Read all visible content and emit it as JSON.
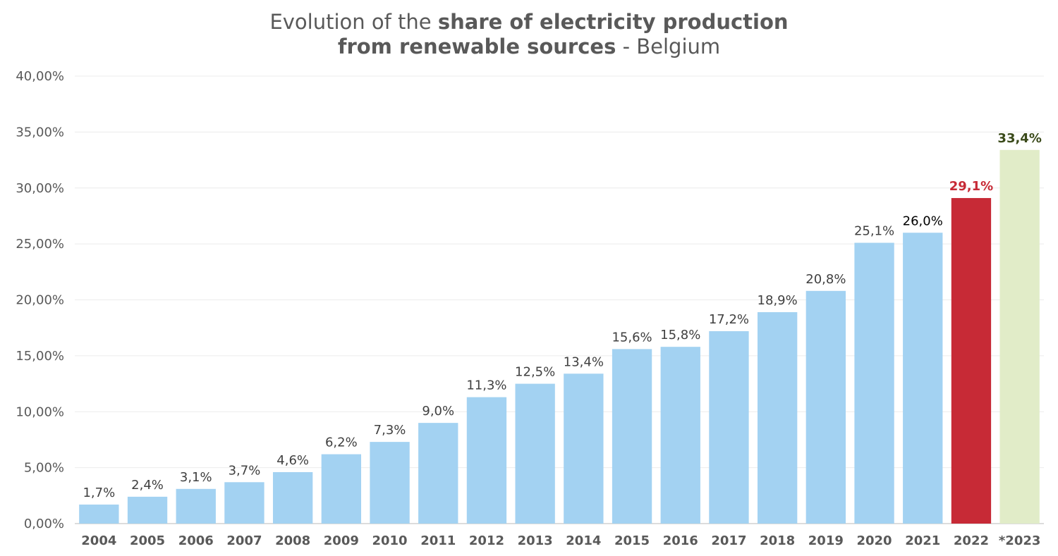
{
  "chart_data": {
    "type": "bar",
    "title": {
      "part1": "Evolution of the ",
      "part2_bold": "share of electricity production",
      "part3_bold": "from renewable sources",
      "part4": " - Belgium"
    },
    "xlabel": "",
    "ylabel": "",
    "ylim": [
      0,
      40
    ],
    "yticks": [
      {
        "value": 0,
        "label": "0,00%"
      },
      {
        "value": 5,
        "label": "5,00%"
      },
      {
        "value": 10,
        "label": "10,00%"
      },
      {
        "value": 15,
        "label": "15,00%"
      },
      {
        "value": 20,
        "label": "20,00%"
      },
      {
        "value": 25,
        "label": "25,00%"
      },
      {
        "value": 30,
        "label": "30,00%"
      },
      {
        "value": 35,
        "label": "35,00%"
      },
      {
        "value": 40,
        "label": "40,00%"
      }
    ],
    "grid": true,
    "categories": [
      "2004",
      "2005",
      "2006",
      "2007",
      "2008",
      "2009",
      "2010",
      "2011",
      "2012",
      "2013",
      "2014",
      "2015",
      "2016",
      "2017",
      "2018",
      "2019",
      "2020",
      "2021",
      "2022",
      "*2023"
    ],
    "values": [
      1.7,
      2.4,
      3.1,
      3.7,
      4.6,
      6.2,
      7.3,
      9.0,
      11.3,
      12.5,
      13.4,
      15.6,
      15.8,
      17.2,
      18.9,
      20.8,
      25.1,
      26.0,
      29.1,
      33.4
    ],
    "labels": [
      "1,7%",
      "2,4%",
      "3,1%",
      "3,7%",
      "4,6%",
      "6,2%",
      "7,3%",
      "9,0%",
      "11,3%",
      "12,5%",
      "13,4%",
      "15,6%",
      "15,8%",
      "17,2%",
      "18,9%",
      "20,8%",
      "25,1%",
      "26,0%",
      "29,1%",
      "33,4%"
    ],
    "bar_colors": [
      "#a3d2f2",
      "#a3d2f2",
      "#a3d2f2",
      "#a3d2f2",
      "#a3d2f2",
      "#a3d2f2",
      "#a3d2f2",
      "#a3d2f2",
      "#a3d2f2",
      "#a3d2f2",
      "#a3d2f2",
      "#a3d2f2",
      "#a3d2f2",
      "#a3d2f2",
      "#a3d2f2",
      "#a3d2f2",
      "#a3d2f2",
      "#a3d2f2",
      "#c72a36",
      "#e1ecc8"
    ],
    "label_colors": [
      "#404040",
      "#404040",
      "#404040",
      "#404040",
      "#404040",
      "#404040",
      "#404040",
      "#404040",
      "#404040",
      "#404040",
      "#404040",
      "#404040",
      "#404040",
      "#404040",
      "#404040",
      "#404040",
      "#404040",
      "#000000",
      "#c72a36",
      "#3a4a1a"
    ],
    "label_bold": [
      false,
      false,
      false,
      false,
      false,
      false,
      false,
      false,
      false,
      false,
      false,
      false,
      false,
      false,
      false,
      false,
      false,
      false,
      true,
      true
    ]
  }
}
